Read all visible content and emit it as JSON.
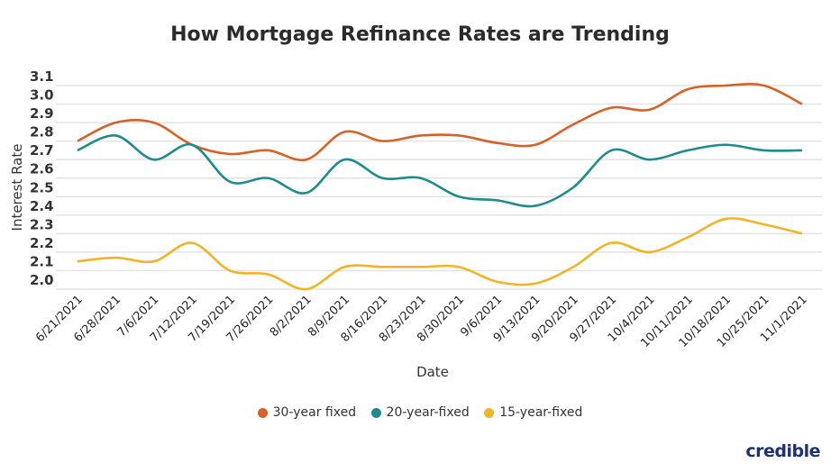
{
  "chart_data": {
    "type": "line",
    "title": "How Mortgage Refinance Rates are Trending",
    "xlabel": "Date",
    "ylabel": "Interest Rate",
    "ylim": [
      2.0,
      3.1
    ],
    "yticks": [
      "3.1",
      "3.0",
      "2.9",
      "2.8",
      "2.7",
      "2.6",
      "2.5",
      "2.4",
      "2.3",
      "2.2",
      "2.1",
      "2.0"
    ],
    "grid": true,
    "legend_position": "bottom",
    "categories": [
      "6/21/2021",
      "6/28/2021",
      "7/6/2021",
      "7/12/2021",
      "7/19/2021",
      "7/26/2021",
      "8/2/2021",
      "8/9/2021",
      "8/16/2021",
      "8/23/2021",
      "8/30/2021",
      "9/6/2021",
      "9/13/2021",
      "9/20/2021",
      "9/27/2021",
      "10/4/2021",
      "10/11/2021",
      "10/18/2021",
      "10/25/2021",
      "11/1/2021"
    ],
    "series": [
      {
        "name": "30-year fixed",
        "color": "#d4622a",
        "values": [
          2.8,
          2.9,
          2.9,
          2.78,
          2.73,
          2.75,
          2.7,
          2.85,
          2.8,
          2.83,
          2.83,
          2.79,
          2.78,
          2.89,
          2.98,
          2.97,
          3.08,
          3.1,
          3.1,
          3.0
        ]
      },
      {
        "name": "20-year-fixed",
        "color": "#1f8a8f",
        "values": [
          2.75,
          2.83,
          2.7,
          2.78,
          2.58,
          2.6,
          2.52,
          2.7,
          2.6,
          2.6,
          2.5,
          2.48,
          2.45,
          2.55,
          2.75,
          2.7,
          2.75,
          2.78,
          2.75,
          2.75
        ]
      },
      {
        "name": "15-year-fixed",
        "color": "#f0b429",
        "values": [
          2.15,
          2.17,
          2.15,
          2.25,
          2.1,
          2.08,
          2.0,
          2.12,
          2.12,
          2.12,
          2.12,
          2.04,
          2.03,
          2.12,
          2.25,
          2.2,
          2.28,
          2.38,
          2.35,
          2.3
        ]
      }
    ]
  },
  "logo": "credible"
}
